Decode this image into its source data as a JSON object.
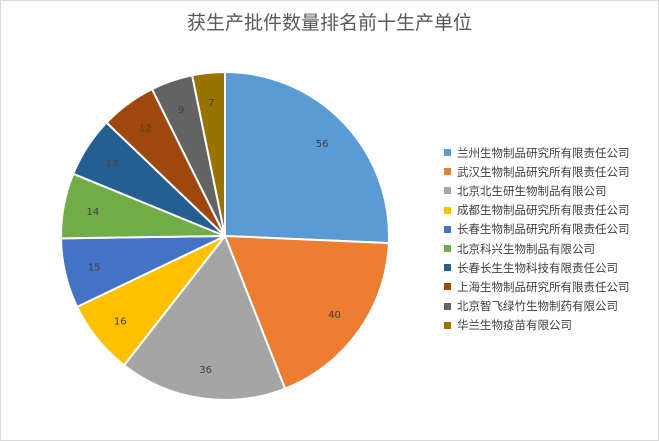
{
  "chart_data": {
    "type": "pie",
    "title": "获生产批件数量排名前十生产单位",
    "legend_position": "right",
    "slices": [
      {
        "label": "兰州生物制品研究所有限责任公司",
        "value": 56,
        "color": "#5b9bd5"
      },
      {
        "label": "武汉生物制品研究所有限责任公司",
        "value": 40,
        "color": "#ed7d31"
      },
      {
        "label": "北京北生研生物制品有限公司",
        "value": 36,
        "color": "#a5a5a5"
      },
      {
        "label": "成都生物制品研究所有限责任公司",
        "value": 16,
        "color": "#ffc000"
      },
      {
        "label": "长春生物制品研究所有限责任公司",
        "value": 15,
        "color": "#4472c4"
      },
      {
        "label": "北京科兴生物制品有限公司",
        "value": 14,
        "color": "#70ad47"
      },
      {
        "label": "长春长生生物科技有限责任公司",
        "value": 13,
        "color": "#255e91"
      },
      {
        "label": "上海生物制品研究所有限责任公司",
        "value": 12,
        "color": "#9e480e"
      },
      {
        "label": "北京智飞绿竹生物制药有限公司",
        "value": 9,
        "color": "#636363"
      },
      {
        "label": "华兰生物疫苗有限公司",
        "value": 7,
        "color": "#997300"
      }
    ]
  }
}
